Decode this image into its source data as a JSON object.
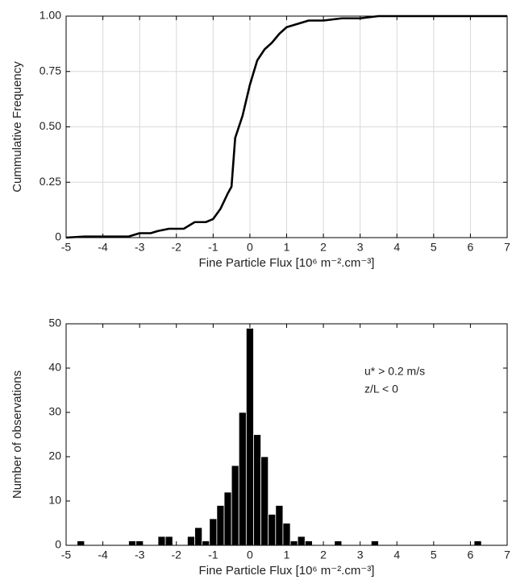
{
  "chart_data": [
    {
      "type": "line",
      "xlabel": "Fine Particle Flux [10⁶ m⁻².cm⁻³]",
      "ylabel": "Cummulative Frequency",
      "x": [
        -5,
        -4.5,
        -4,
        -3.5,
        -3.3,
        -3,
        -2.7,
        -2.5,
        -2.2,
        -1.8,
        -1.5,
        -1.2,
        -1,
        -0.8,
        -0.6,
        -0.5,
        -0.4,
        -0.2,
        0,
        0.2,
        0.4,
        0.6,
        0.8,
        1,
        1.4,
        1.6,
        2,
        2.5,
        3,
        3.5,
        6.2,
        7
      ],
      "values": [
        0,
        0.005,
        0.005,
        0.005,
        0.005,
        0.02,
        0.02,
        0.03,
        0.04,
        0.04,
        0.07,
        0.07,
        0.084,
        0.13,
        0.2,
        0.23,
        0.45,
        0.55,
        0.69,
        0.8,
        0.85,
        0.88,
        0.92,
        0.95,
        0.97,
        0.98,
        0.98,
        0.99,
        0.99,
        1,
        1,
        1
      ],
      "color": "#000000",
      "xlim": [
        -5,
        7
      ],
      "xticks": [
        -5,
        -4,
        -3,
        -2,
        -1,
        0,
        1,
        2,
        3,
        4,
        5,
        6,
        7
      ],
      "ylim": [
        0,
        1
      ],
      "yticks": [
        0,
        0.25,
        {
          "value": 0.5,
          "label": "0.50"
        },
        0.75,
        {
          "value": 1,
          "label": "1.00"
        }
      ],
      "grid": true
    },
    {
      "type": "histogram",
      "xlabel": "Fine Particle Flux [10⁶ m⁻².cm⁻³]",
      "ylabel": "Number of observations",
      "annotations": [
        "u* > 0.2 m/s",
        "z/L < 0"
      ],
      "bins": [
        -4.7,
        -4.5,
        -4.3,
        -4.1,
        -3.9,
        -3.7,
        -3.5,
        -3.3,
        -3.1,
        -2.9,
        -2.7,
        -2.5,
        -2.3,
        -2.1,
        -1.9,
        -1.7,
        -1.5,
        -1.3,
        -1.1,
        -0.9,
        -0.7,
        -0.5,
        -0.3,
        -0.1,
        0.1,
        0.3,
        0.5,
        0.7,
        0.9,
        1.1,
        1.3,
        1.5,
        1.7,
        1.9,
        2.1,
        2.3,
        2.5,
        2.7,
        2.9,
        3.1,
        3.3,
        3.5,
        3.7,
        3.9,
        4.1,
        4.3,
        4.5,
        4.7,
        4.9,
        5.1,
        5.3,
        5.5,
        5.7,
        5.9,
        6.1,
        6.3
      ],
      "values": [
        1,
        0,
        0,
        0,
        0,
        0,
        0,
        1,
        1,
        0,
        0,
        2,
        2,
        0,
        0,
        2,
        4,
        1,
        6,
        9,
        12,
        18,
        30,
        49,
        25,
        20,
        7,
        9,
        5,
        1,
        2,
        1,
        0,
        0,
        0,
        1,
        0,
        0,
        0,
        0,
        1,
        0,
        0,
        0,
        0,
        0,
        0,
        0,
        0,
        0,
        0,
        0,
        0,
        0,
        1
      ],
      "color": "#000000",
      "xlim": [
        -5,
        7
      ],
      "xticks": [
        -5,
        -4,
        -3,
        -2,
        -1,
        0,
        1,
        2,
        3,
        4,
        5,
        6,
        7
      ],
      "ylim": [
        0,
        50
      ],
      "yticks": [
        0,
        10,
        20,
        30,
        40,
        50
      ],
      "grid": false
    }
  ]
}
